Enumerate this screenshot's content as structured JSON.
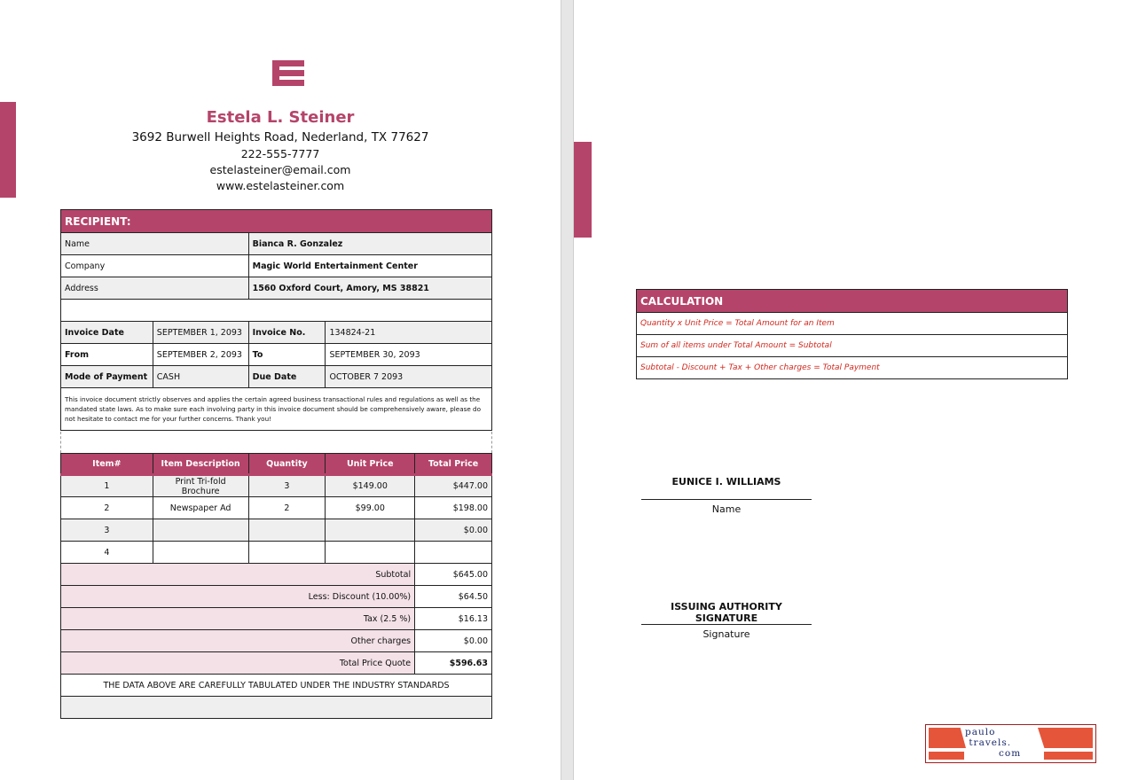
{
  "brand_color": "#b5446a",
  "header": {
    "name": "Estela L. Steiner",
    "address": "3692 Burwell Heights Road, Nederland, TX 77627",
    "phone": "222-555-7777",
    "email": "estelasteiner@email.com",
    "website": "www.estelasteiner.com",
    "logo_icon": "stacked-bars-logo"
  },
  "recipient": {
    "title": "RECIPIENT:",
    "rows": [
      {
        "label": "Name",
        "value": "Bianca R. Gonzalez"
      },
      {
        "label": "Company",
        "value": "Magic World Entertainment Center"
      },
      {
        "label": "Address",
        "value": "1560 Oxford Court, Amory, MS 38821"
      }
    ]
  },
  "details": [
    {
      "l1": "Invoice Date",
      "v1": "SEPTEMBER 1, 2093",
      "l2": "Invoice No.",
      "v2": "134824-21"
    },
    {
      "l1": "From",
      "v1": "SEPTEMBER 2, 2093",
      "l2": "To",
      "v2": "SEPTEMBER 30, 2093"
    },
    {
      "l1": "Mode of Payment",
      "v1": "CASH",
      "l2": "Due Date",
      "v2": "OCTOBER 7 2093"
    }
  ],
  "notice": "This invoice document strictly observes and applies the certain agreed business transactional rules and regulations as well as the mandated state laws. As to make sure each involving party in this invoice document should be comprehensively aware, please do not hesitate to contact me for your further concerns. Thank you!",
  "items": {
    "headers": [
      "Item#",
      "Item Description",
      "Quantity",
      "Unit Price",
      "Total Price"
    ],
    "rows": [
      [
        "1",
        "Print Tri-fold Brochure",
        "3",
        "$149.00",
        "$447.00"
      ],
      [
        "2",
        "Newspaper Ad",
        "2",
        "$99.00",
        "$198.00"
      ],
      [
        "3",
        "",
        "",
        "",
        "$0.00"
      ],
      [
        "4",
        "",
        "",
        "",
        ""
      ]
    ]
  },
  "totals": [
    {
      "label": "Subtotal",
      "value": "$645.00"
    },
    {
      "label": "Less: Discount (10.00%)",
      "value": "$64.50"
    },
    {
      "label": "Tax (2.5 %)",
      "value": "$16.13"
    },
    {
      "label": "Other charges",
      "value": "$0.00"
    },
    {
      "label": "Total Price Quote",
      "value": "$596.63"
    }
  ],
  "footer_note": "THE DATA ABOVE ARE CAREFULLY TABULATED UNDER THE INDUSTRY STANDARDS",
  "calculation": {
    "title": "CALCULATION",
    "rows": [
      "Quantity x Unit Price = Total Amount for an Item",
      "Sum of all items under Total Amount = Subtotal",
      "Subtotal - Discount + Tax + Other charges = Total Payment"
    ]
  },
  "signatures": [
    {
      "name": "EUNICE I. WILLIAMS",
      "caption": "Name"
    },
    {
      "name": "ISSUING AUTHORITY SIGNATURE",
      "caption": "Signature"
    }
  ],
  "watermark": {
    "text": "paulo travels. com",
    "colors": {
      "stripe": "#e5553a",
      "text": "#1a2a6c"
    }
  }
}
